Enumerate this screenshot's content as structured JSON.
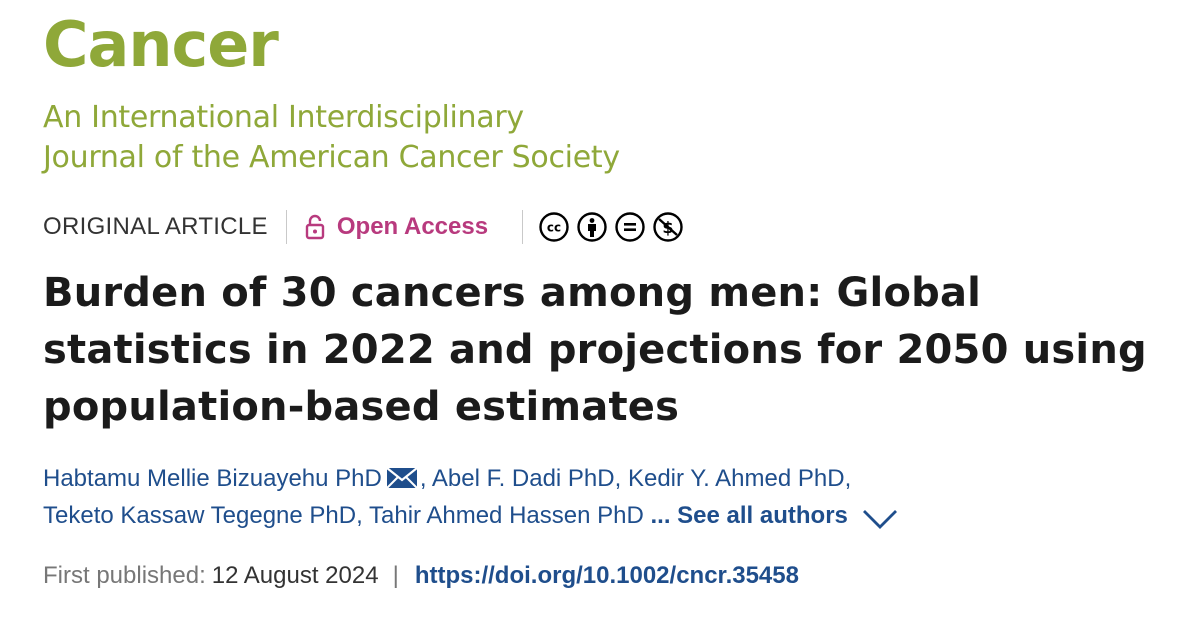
{
  "colors": {
    "brand_green": "#8fa839",
    "open_access": "#b83a7e",
    "link_blue": "#1f4e8c",
    "text_dark": "#1b1b1b"
  },
  "journal": {
    "name": "Cancer",
    "subtitle_line1": "An International Interdisciplinary",
    "subtitle_line2": "Journal of the American Cancer Society"
  },
  "meta": {
    "article_type": "ORIGINAL ARTICLE",
    "open_access": "Open Access",
    "license_icons": [
      "cc-icon",
      "by-icon",
      "nd-icon",
      "nc-icon"
    ]
  },
  "article": {
    "title": "Burden of 30 cancers among men: Global statistics in 2022 and projections for 2050 using population-based estimates"
  },
  "authors": {
    "list": [
      "Habtamu Mellie Bizuayehu PhD",
      "Abel F. Dadi PhD",
      "Kedir Y. Ahmed PhD",
      "Teketo Kassaw Tegegne PhD",
      "Tahir Ahmed Hassen PhD"
    ],
    "ellipsis": "...",
    "see_all": "See all authors"
  },
  "publication": {
    "label": "First published:",
    "date": "12 August 2024",
    "separator": "|",
    "doi": "https://doi.org/10.1002/cncr.35458"
  }
}
